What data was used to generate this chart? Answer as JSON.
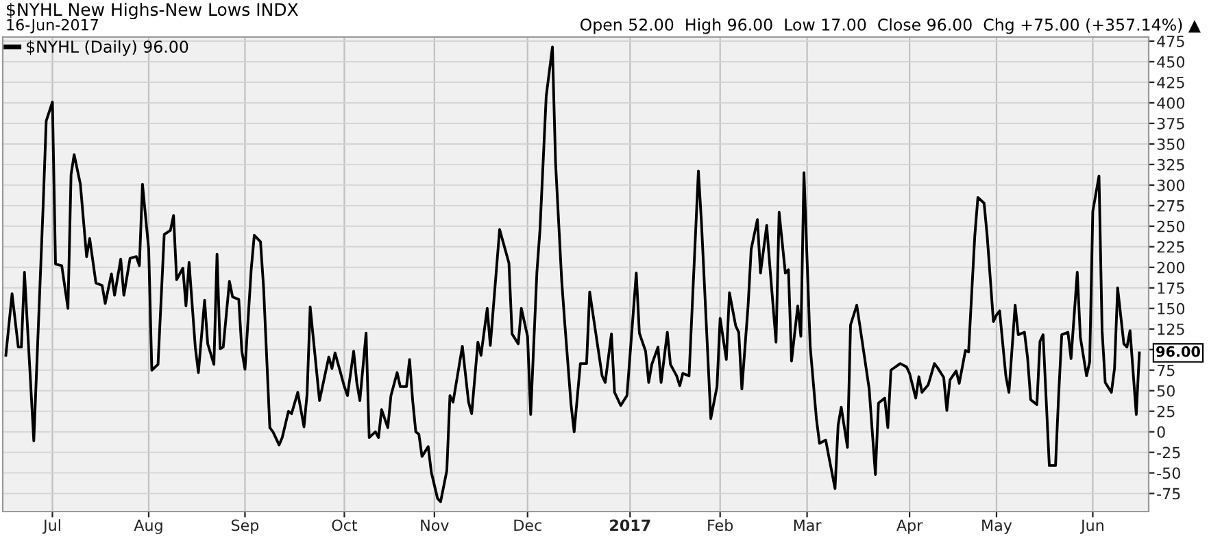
{
  "chart_data": {
    "type": "line",
    "title": "$NYHL New Highs-New Lows INDX",
    "subtitle": "16-Jun-2017",
    "annotations": [
      "Open 52.00  High 96.00  Low 17.00  Close 96.00  Chg +75.00 (+357.14%) ▲",
      {
        "text": "96.00",
        "x": "2017-06-16",
        "y": 96
      }
    ],
    "xlim": [
      "2016-06-15",
      "2017-06-19"
    ],
    "xticks": [
      {
        "value": "2016-07-01",
        "label": "Jul"
      },
      {
        "value": "2016-08-01",
        "label": "Aug"
      },
      {
        "value": "2016-09-01",
        "label": "Sep"
      },
      {
        "value": "2016-10-03",
        "label": "Oct"
      },
      {
        "value": "2016-11-01",
        "label": "Nov"
      },
      {
        "value": "2016-12-01",
        "label": "Dec"
      },
      {
        "value": "2017-01-03",
        "label": "2017"
      },
      {
        "value": "2017-02-01",
        "label": "Feb"
      },
      {
        "value": "2017-03-01",
        "label": "Mar"
      },
      {
        "value": "2017-04-03",
        "label": "Apr"
      },
      {
        "value": "2017-05-01",
        "label": "May"
      },
      {
        "value": "2017-06-01",
        "label": "Jun"
      }
    ],
    "ylim": [
      -97,
      480
    ],
    "yticks": [
      -75,
      -50,
      -25,
      0,
      25,
      50,
      75,
      {
        "value": 100,
        "label": null
      },
      125,
      150,
      175,
      200,
      225,
      250,
      275,
      300,
      325,
      350,
      375,
      400,
      425,
      450,
      475
    ],
    "grid": true,
    "legend": "top left",
    "series": [
      {
        "name": "$NYHL (Daily) 96.00",
        "color": "#000000",
        "x": [
          "2016-06-16",
          "2016-06-18",
          "2016-06-20",
          "2016-06-21",
          "2016-06-22",
          "2016-06-25",
          "2016-06-28",
          "2016-06-29",
          "2016-07-01",
          "2016-07-02",
          "2016-07-04",
          "2016-07-06",
          "2016-07-07",
          "2016-07-08",
          "2016-07-10",
          "2016-07-12",
          "2016-07-13",
          "2016-07-15",
          "2016-07-17",
          "2016-07-18",
          "2016-07-20",
          "2016-07-21",
          "2016-07-23",
          "2016-07-24",
          "2016-07-26",
          "2016-07-28",
          "2016-07-29",
          "2016-07-30",
          "2016-08-01",
          "2016-08-02",
          "2016-08-04",
          "2016-08-06",
          "2016-08-08",
          "2016-08-09",
          "2016-08-10",
          "2016-08-12",
          "2016-08-13",
          "2016-08-14",
          "2016-08-16",
          "2016-08-17",
          "2016-08-19",
          "2016-08-20",
          "2016-08-22",
          "2016-08-23",
          "2016-08-24",
          "2016-08-25",
          "2016-08-27",
          "2016-08-28",
          "2016-08-30",
          "2016-08-31",
          "2016-09-01",
          "2016-09-03",
          "2016-09-04",
          "2016-09-06",
          "2016-09-07",
          "2016-09-09",
          "2016-09-10",
          "2016-09-12",
          "2016-09-13",
          "2016-09-15",
          "2016-09-16",
          "2016-09-18",
          "2016-09-20",
          "2016-09-21",
          "2016-09-22",
          "2016-09-25",
          "2016-09-28",
          "2016-09-29",
          "2016-09-30",
          "2016-10-03",
          "2016-10-04",
          "2016-10-06",
          "2016-10-07",
          "2016-10-08",
          "2016-10-10",
          "2016-10-11",
          "2016-10-13",
          "2016-10-14",
          "2016-10-15",
          "2016-10-17",
          "2016-10-18",
          "2016-10-20",
          "2016-10-21",
          "2016-10-23",
          "2016-10-24",
          "2016-10-25",
          "2016-10-26",
          "2016-10-27",
          "2016-10-28",
          "2016-10-30",
          "2016-10-31",
          "2016-11-02",
          "2016-11-03",
          "2016-11-05",
          "2016-11-06",
          "2016-11-07",
          "2016-11-10",
          "2016-11-12",
          "2016-11-13",
          "2016-11-15",
          "2016-11-16",
          "2016-11-18",
          "2016-11-19",
          "2016-11-22",
          "2016-11-25",
          "2016-11-26",
          "2016-11-28",
          "2016-11-29",
          "2016-12-01",
          "2016-12-02",
          "2016-12-04",
          "2016-12-05",
          "2016-12-07",
          "2016-12-09",
          "2016-12-10",
          "2016-12-12",
          "2016-12-13",
          "2016-12-15",
          "2016-12-16",
          "2016-12-18",
          "2016-12-20",
          "2016-12-21",
          "2016-12-25",
          "2016-12-26",
          "2016-12-28",
          "2016-12-29",
          "2016-12-31",
          "2017-01-02",
          "2017-01-05",
          "2017-01-06",
          "2017-01-08",
          "2017-01-09",
          "2017-01-10",
          "2017-01-12",
          "2017-01-13",
          "2017-01-15",
          "2017-01-16",
          "2017-01-18",
          "2017-01-19",
          "2017-01-20",
          "2017-01-22",
          "2017-01-25",
          "2017-01-26",
          "2017-01-29",
          "2017-01-31",
          "2017-02-01",
          "2017-02-03",
          "2017-02-04",
          "2017-02-06",
          "2017-02-07",
          "2017-02-08",
          "2017-02-10",
          "2017-02-11",
          "2017-02-13",
          "2017-02-14",
          "2017-02-16",
          "2017-02-17",
          "2017-02-19",
          "2017-02-20",
          "2017-02-22",
          "2017-02-23",
          "2017-02-24",
          "2017-02-26",
          "2017-02-27",
          "2017-02-28",
          "2017-03-02",
          "2017-03-04",
          "2017-03-05",
          "2017-03-07",
          "2017-03-08",
          "2017-03-10",
          "2017-03-11",
          "2017-03-12",
          "2017-03-14",
          "2017-03-15",
          "2017-03-17",
          "2017-03-18",
          "2017-03-21",
          "2017-03-23",
          "2017-03-24",
          "2017-03-26",
          "2017-03-27",
          "2017-03-28",
          "2017-03-31",
          "2017-04-02",
          "2017-04-03",
          "2017-04-05",
          "2017-04-06",
          "2017-04-07",
          "2017-04-09",
          "2017-04-11",
          "2017-04-12",
          "2017-04-14",
          "2017-04-15",
          "2017-04-16",
          "2017-04-18",
          "2017-04-19",
          "2017-04-21",
          "2017-04-22",
          "2017-04-24",
          "2017-04-25",
          "2017-04-27",
          "2017-04-28",
          "2017-04-30",
          "2017-05-01",
          "2017-05-02",
          "2017-05-04",
          "2017-05-05",
          "2017-05-07",
          "2017-05-08",
          "2017-05-10",
          "2017-05-11",
          "2017-05-12",
          "2017-05-14",
          "2017-05-15",
          "2017-05-16",
          "2017-05-18",
          "2017-05-20",
          "2017-05-21",
          "2017-05-22",
          "2017-05-24",
          "2017-05-25",
          "2017-05-27",
          "2017-05-28",
          "2017-05-30",
          "2017-05-31",
          "2017-06-01",
          "2017-06-03",
          "2017-06-04",
          "2017-06-05",
          "2017-06-07",
          "2017-06-08",
          "2017-06-09",
          "2017-06-11",
          "2017-06-12",
          "2017-06-13",
          "2017-06-15",
          "2017-06-16"
        ],
        "values": [
          93,
          168,
          103,
          103,
          194,
          -11,
          274,
          378,
          401,
          204,
          202,
          150,
          313,
          337,
          301,
          213,
          235,
          181,
          178,
          156,
          192,
          166,
          210,
          166,
          211,
          213,
          202,
          301,
          222,
          75,
          82,
          240,
          245,
          263,
          185,
          199,
          153,
          206,
          103,
          72,
          160,
          107,
          82,
          216,
          101,
          103,
          183,
          164,
          161,
          98,
          76,
          197,
          239,
          231,
          175,
          5,
          0,
          -16,
          -7,
          25,
          22,
          48,
          6,
          46,
          152,
          38,
          91,
          77,
          96,
          55,
          44,
          98,
          60,
          38,
          120,
          -7,
          0,
          -7,
          27,
          5,
          44,
          72,
          55,
          55,
          88,
          38,
          0,
          -3,
          -30,
          -18,
          -49,
          -81,
          -85,
          -47,
          44,
          36,
          104,
          36,
          22,
          109,
          93,
          150,
          105,
          246,
          205,
          119,
          107,
          150,
          116,
          21,
          194,
          246,
          408,
          468,
          328,
          183,
          131,
          33,
          0,
          83,
          83,
          170,
          68,
          60,
          119,
          48,
          32,
          44,
          193,
          120,
          98,
          60,
          82,
          103,
          60,
          121,
          82,
          68,
          56,
          71,
          68,
          317,
          254,
          16,
          55,
          138,
          88,
          169,
          129,
          121,
          52,
          153,
          222,
          258,
          193,
          251,
          202,
          109,
          267,
          193,
          197,
          86,
          153,
          116,
          315,
          104,
          16,
          -14,
          -10,
          -30,
          -69,
          8,
          30,
          -19,
          130,
          154,
          129,
          52,
          -52,
          35,
          41,
          5,
          75,
          83,
          79,
          71,
          41,
          67,
          48,
          57,
          83,
          78,
          66,
          26,
          63,
          74,
          59,
          99,
          97,
          238,
          285,
          278,
          238,
          134,
          142,
          147,
          68,
          48,
          154,
          118,
          121,
          90,
          39,
          33,
          110,
          118,
          -41,
          -41,
          44,
          118,
          121,
          89,
          194,
          115,
          68,
          85,
          268,
          311,
          123,
          60,
          48,
          77,
          175,
          107,
          103,
          123,
          21,
          96
        ]
      }
    ]
  }
}
